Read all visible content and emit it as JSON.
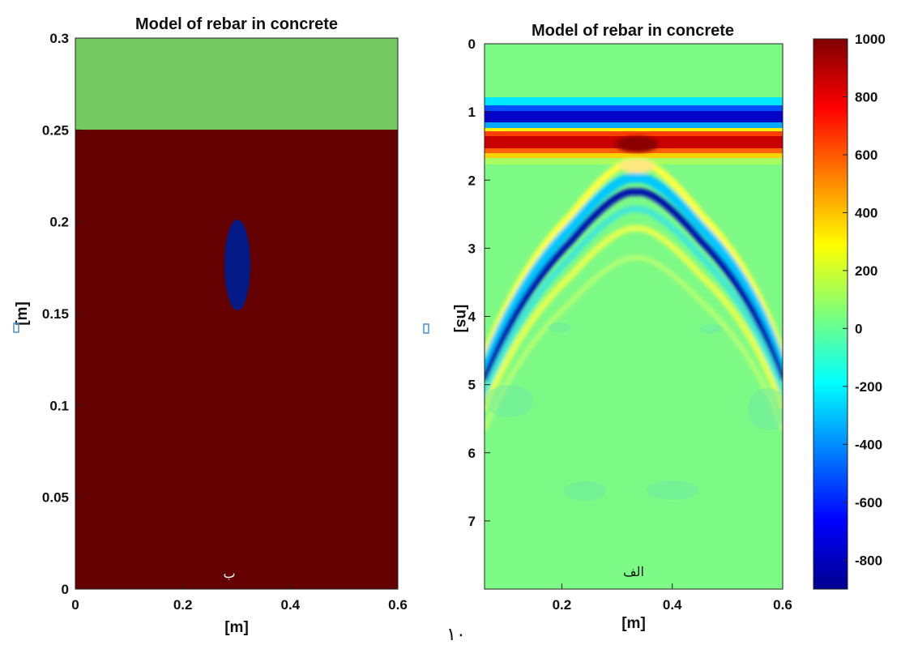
{
  "left_chart": {
    "title": "Model of rebar in concrete",
    "xlabel": "[m]",
    "ylabel": "[m]",
    "xticks": [
      "0",
      "0.2",
      "0.4",
      "0.6"
    ],
    "yticks": [
      "0",
      "0.05",
      "0.1",
      "0.15",
      "0.2",
      "0.25",
      "0.3"
    ],
    "panel_letter": "ب"
  },
  "right_chart": {
    "title": "Model of rebar in concrete",
    "xlabel": "[m]",
    "ylabel": "[ns]",
    "xticks": [
      "0.2",
      "0.4",
      "0.6"
    ],
    "yticks": [
      "0",
      "1",
      "2",
      "3",
      "4",
      "5",
      "6",
      "7"
    ],
    "panel_letter": "الف",
    "colorbar_ticks": [
      "1000",
      "800",
      "600",
      "400",
      "200",
      "0",
      "-200",
      "-400",
      "-600",
      "-800"
    ]
  },
  "page_number": "١٠",
  "chart_data": [
    {
      "type": "heatmap",
      "title": "Model of rebar in concrete",
      "xlabel": "[m]",
      "ylabel": "[m]",
      "xlim": [
        0,
        0.6
      ],
      "ylim": [
        0,
        0.3
      ],
      "regions": [
        {
          "label": "air",
          "y_from": 0.25,
          "y_to": 0.3,
          "color": "#75c962"
        },
        {
          "label": "concrete",
          "y_from": 0,
          "y_to": 0.25,
          "color": "#640000"
        },
        {
          "label": "rebar",
          "center_x": 0.3,
          "center_y": 0.175,
          "radius_x": 0.022,
          "radius_y": 0.025,
          "color": "#041a86"
        }
      ]
    },
    {
      "type": "heatmap",
      "title": "Model of rebar in concrete",
      "xlabel": "[m]",
      "ylabel": "[ns]",
      "xlim": [
        0.06,
        0.6
      ],
      "ylim": [
        8,
        0
      ],
      "colorbar_range": [
        -900,
        1000
      ],
      "features": [
        {
          "label": "direct wave negative",
          "t_ns": 1.1,
          "value": -800
        },
        {
          "label": "direct wave positive",
          "t_ns": 1.5,
          "value": 1000
        },
        {
          "label": "rebar hyperbola apex",
          "x_m": 0.335,
          "t_ns": 2.1,
          "value": -900
        }
      ]
    }
  ]
}
